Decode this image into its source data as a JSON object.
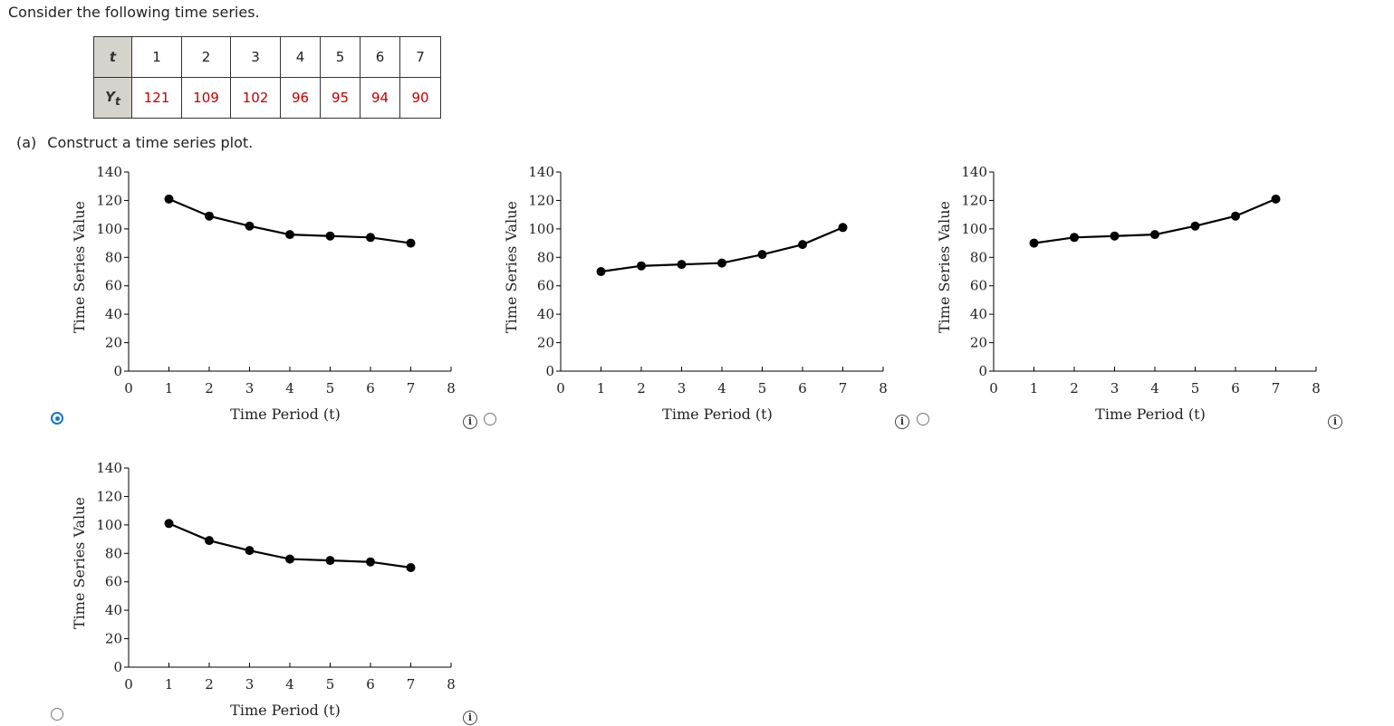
{
  "intro_text": "Consider the following time series.",
  "table": {
    "t_header": "t",
    "y_header": "Y",
    "y_sub": "t",
    "t_values": [
      "1",
      "2",
      "3",
      "4",
      "5",
      "6",
      "7"
    ],
    "y_values": [
      "121",
      "109",
      "102",
      "96",
      "95",
      "94",
      "90"
    ]
  },
  "part_a": {
    "label": "(a)",
    "text": "Construct a time series plot."
  },
  "info_glyph": "i",
  "colors": {
    "table_values": "#c00000",
    "header_bg": "#d6d3cc",
    "radio_selected": "#1a73c9"
  },
  "chart_data": [
    {
      "type": "line",
      "x": [
        1,
        2,
        3,
        4,
        5,
        6,
        7
      ],
      "y": [
        121,
        109,
        102,
        96,
        95,
        94,
        90
      ],
      "xlim": [
        0,
        8
      ],
      "ylim": [
        0,
        140
      ],
      "xticks": [
        0,
        1,
        2,
        3,
        4,
        5,
        6,
        7,
        8
      ],
      "yticks": [
        0,
        20,
        40,
        60,
        80,
        100,
        120,
        140
      ],
      "xlabel": "Time Period (t)",
      "ylabel": "Time Series Value",
      "selected": true
    },
    {
      "type": "line",
      "x": [
        1,
        2,
        3,
        4,
        5,
        6,
        7
      ],
      "y": [
        70,
        74,
        75,
        76,
        82,
        89,
        101
      ],
      "xlim": [
        0,
        8
      ],
      "ylim": [
        0,
        140
      ],
      "xticks": [
        0,
        1,
        2,
        3,
        4,
        5,
        6,
        7,
        8
      ],
      "yticks": [
        0,
        20,
        40,
        60,
        80,
        100,
        120,
        140
      ],
      "xlabel": "Time Period (t)",
      "ylabel": "Time Series Value",
      "selected": false
    },
    {
      "type": "line",
      "x": [
        1,
        2,
        3,
        4,
        5,
        6,
        7
      ],
      "y": [
        90,
        94,
        95,
        96,
        102,
        109,
        121
      ],
      "xlim": [
        0,
        8
      ],
      "ylim": [
        0,
        140
      ],
      "xticks": [
        0,
        1,
        2,
        3,
        4,
        5,
        6,
        7,
        8
      ],
      "yticks": [
        0,
        20,
        40,
        60,
        80,
        100,
        120,
        140
      ],
      "xlabel": "Time Period (t)",
      "ylabel": "Time Series Value",
      "selected": false
    },
    {
      "type": "line",
      "x": [
        1,
        2,
        3,
        4,
        5,
        6,
        7
      ],
      "y": [
        101,
        89,
        82,
        76,
        75,
        74,
        70
      ],
      "xlim": [
        0,
        8
      ],
      "ylim": [
        0,
        140
      ],
      "xticks": [
        0,
        1,
        2,
        3,
        4,
        5,
        6,
        7,
        8
      ],
      "yticks": [
        0,
        20,
        40,
        60,
        80,
        100,
        120,
        140
      ],
      "xlabel": "Time Period (t)",
      "ylabel": "Time Series Value",
      "selected": false
    }
  ]
}
